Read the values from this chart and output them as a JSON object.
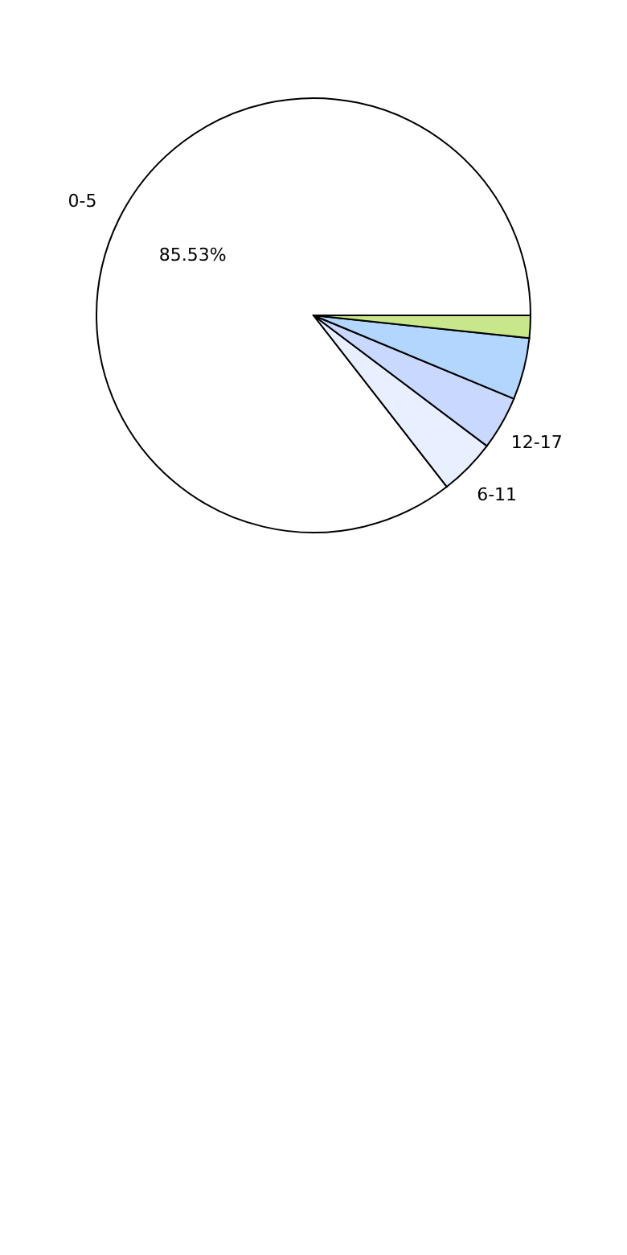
{
  "chart_data": {
    "type": "pie",
    "categories": [
      "0-5",
      "6-11",
      "12-17",
      null,
      null
    ],
    "values": [
      85.53,
      4.2,
      4.0,
      4.6,
      1.67
    ],
    "colors": [
      "#ffffff",
      "#e8f0ff",
      "#c8d8ff",
      "#b3d6ff",
      "#c8e68a"
    ],
    "value_labels": [
      "85.53%",
      null,
      null,
      null,
      null
    ]
  }
}
